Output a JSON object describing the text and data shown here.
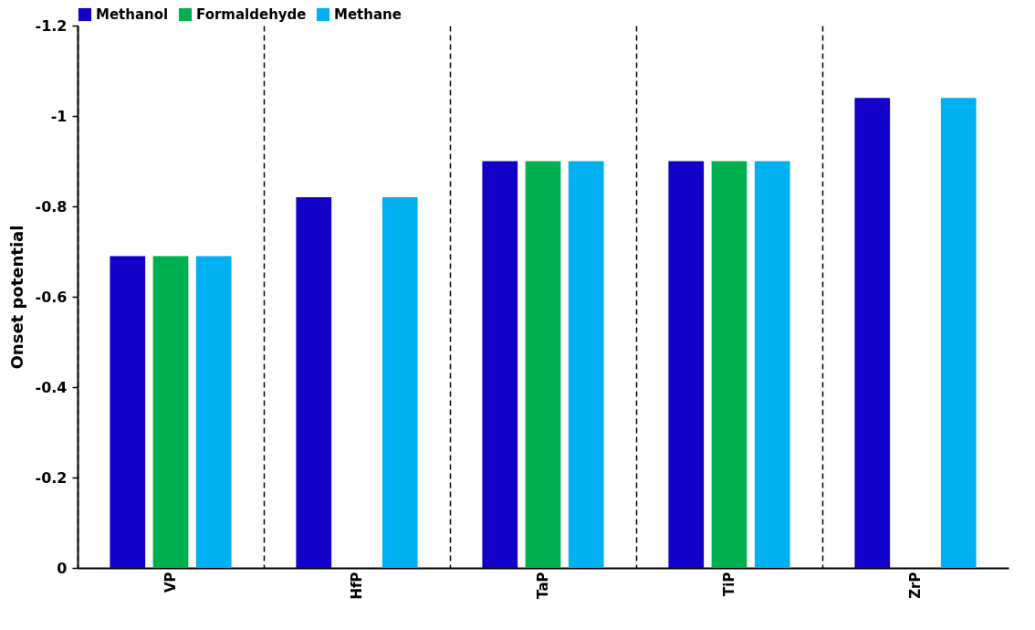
{
  "chart_data": {
    "type": "bar",
    "ylabel": "Onset potential",
    "categories": [
      "VP",
      "HfP",
      "TaP",
      "TiP",
      "ZrP"
    ],
    "series": [
      {
        "name": "Methanol",
        "color": "#1000c8",
        "values": [
          -0.69,
          -0.82,
          -0.9,
          -0.9,
          -1.04
        ]
      },
      {
        "name": "Formaldehyde",
        "color": "#00b050",
        "values": [
          -0.69,
          null,
          -0.9,
          -0.9,
          null
        ]
      },
      {
        "name": "Methane",
        "color": "#00b0f0",
        "values": [
          -0.69,
          -0.82,
          -0.9,
          -0.9,
          -1.04
        ]
      }
    ],
    "ylim": [
      0,
      -1.2
    ],
    "yticks": [
      0,
      -0.2,
      -0.4,
      -0.6,
      -0.8,
      -1,
      -1.2
    ],
    "grid": "x",
    "legend": "top"
  }
}
